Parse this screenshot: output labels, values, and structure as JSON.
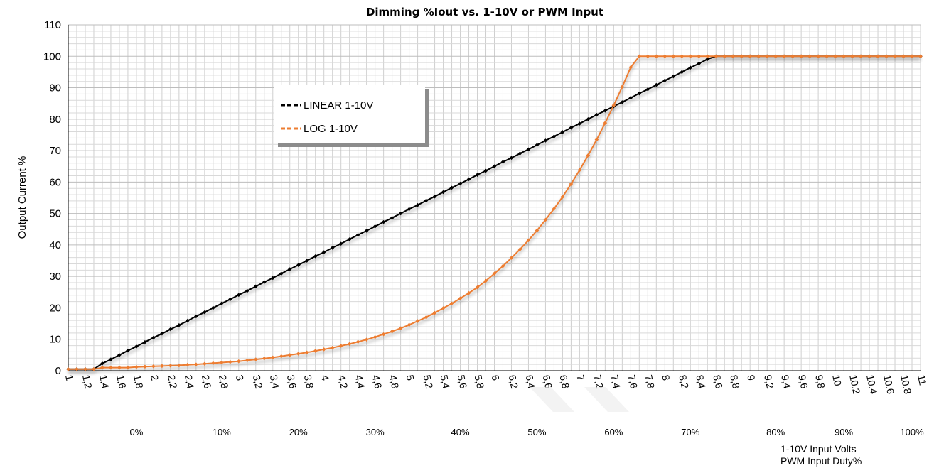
{
  "chart_data": {
    "type": "line",
    "title": "Dimming %Iout vs. 1-10V or PWM Input",
    "ylabel": "Output Current %",
    "xlabel_lines": [
      "1-10V Input Volts",
      "PWM Input Duty%"
    ],
    "ylim": [
      0,
      110
    ],
    "yticks": [
      0,
      10,
      20,
      30,
      40,
      50,
      60,
      70,
      80,
      90,
      100,
      110
    ],
    "xlim": [
      1,
      11
    ],
    "x_tick_labels": [
      "1",
      "1,2",
      "1,4",
      "1,6",
      "1,8",
      "2",
      "2,2",
      "2,4",
      "2,6",
      "2,8",
      "3",
      "3,2",
      "3,4",
      "3,6",
      "3,8",
      "4",
      "4,2",
      "4,4",
      "4,6",
      "4,8",
      "5",
      "5,2",
      "5,4",
      "5,6",
      "5,8",
      "6",
      "6,2",
      "6,4",
      "6,6",
      "6,8",
      "7",
      "7,2",
      "7,4",
      "7,6",
      "7,8",
      "8",
      "8,2",
      "8,4",
      "8,6",
      "8,8",
      "9",
      "9,2",
      "9,4",
      "9,6",
      "9,8",
      "10",
      "10,2",
      "10,4",
      "10,6",
      "10,8",
      "11"
    ],
    "pwm_labels": [
      {
        "text": "0%",
        "at": 1.8
      },
      {
        "text": "10%",
        "at": 2.8
      },
      {
        "text": "20%",
        "at": 3.7
      },
      {
        "text": "30%",
        "at": 4.6
      },
      {
        "text": "40%",
        "at": 5.6
      },
      {
        "text": "50%",
        "at": 6.5
      },
      {
        "text": "60%",
        "at": 7.4
      },
      {
        "text": "70%",
        "at": 8.3
      },
      {
        "text": "80%",
        "at": 9.3
      },
      {
        "text": "90%",
        "at": 10.1
      },
      {
        "text": "100%",
        "at": 10.9
      }
    ],
    "grid": true,
    "legend_position": "top-left",
    "series": [
      {
        "name": "LINEAR 1-10V",
        "color": "#000000",
        "x": [
          1,
          1.1,
          1.2,
          1.3,
          1.4,
          1.5,
          1.6,
          1.7,
          1.8,
          1.9,
          2,
          2.1,
          2.2,
          2.3,
          2.4,
          2.5,
          2.6,
          2.7,
          2.8,
          2.9,
          3,
          3.1,
          3.2,
          3.3,
          3.4,
          3.5,
          3.6,
          3.7,
          3.8,
          3.9,
          4,
          4.1,
          4.2,
          4.3,
          4.4,
          4.5,
          4.6,
          4.7,
          4.8,
          4.9,
          5,
          5.1,
          5.2,
          5.3,
          5.4,
          5.5,
          5.6,
          5.7,
          5.8,
          5.9,
          6,
          6.1,
          6.2,
          6.3,
          6.4,
          6.5,
          6.6,
          6.7,
          6.8,
          6.9,
          7,
          7.1,
          7.2,
          7.3,
          7.4,
          7.5,
          7.6,
          7.7,
          7.8,
          7.9,
          8,
          8.1,
          8.2,
          8.3,
          8.4,
          8.5,
          8.6,
          8.7,
          8.8,
          8.9,
          9,
          9.1,
          9.2,
          9.3,
          9.4,
          9.5,
          9.6,
          9.7,
          9.8,
          9.9,
          10,
          10.1,
          10.2,
          10.3,
          10.4,
          10.5,
          10.6,
          10.7,
          10.8,
          10.9,
          11
        ],
        "values": [
          0.5,
          0.5,
          0.5,
          0.5,
          2.3,
          3.6,
          5,
          6.4,
          7.7,
          9.1,
          10.5,
          11.8,
          13.2,
          14.5,
          15.9,
          17.3,
          18.6,
          20,
          21.4,
          22.7,
          24.1,
          25.4,
          26.8,
          28.2,
          29.5,
          30.9,
          32.3,
          33.6,
          35,
          36.4,
          37.7,
          39.1,
          40.4,
          41.8,
          43.2,
          44.5,
          45.9,
          47.3,
          48.6,
          50,
          51.4,
          52.7,
          54.1,
          55.4,
          56.8,
          58.2,
          59.5,
          60.9,
          62.3,
          63.6,
          65,
          66.4,
          67.7,
          69.1,
          70.4,
          71.8,
          73.2,
          74.5,
          75.9,
          77.3,
          78.6,
          80,
          81.4,
          82.7,
          84.1,
          85.4,
          86.8,
          88.2,
          89.5,
          90.9,
          92.3,
          93.6,
          95,
          96.4,
          97.7,
          99.1,
          100,
          100,
          100,
          100,
          100,
          100,
          100,
          100,
          100,
          100,
          100,
          100,
          100,
          100,
          100,
          100,
          100,
          100,
          100,
          100,
          100,
          100,
          100,
          100,
          100
        ]
      },
      {
        "name": "LOG 1-10V",
        "color": "#ED7D31",
        "x": [
          1,
          1.1,
          1.2,
          1.3,
          1.4,
          1.5,
          1.6,
          1.7,
          1.8,
          1.9,
          2,
          2.1,
          2.2,
          2.3,
          2.4,
          2.5,
          2.6,
          2.7,
          2.8,
          2.9,
          3,
          3.1,
          3.2,
          3.3,
          3.4,
          3.5,
          3.6,
          3.7,
          3.8,
          3.9,
          4,
          4.1,
          4.2,
          4.3,
          4.4,
          4.5,
          4.6,
          4.7,
          4.8,
          4.9,
          5,
          5.1,
          5.2,
          5.3,
          5.4,
          5.5,
          5.6,
          5.7,
          5.8,
          5.9,
          6,
          6.1,
          6.2,
          6.3,
          6.4,
          6.5,
          6.6,
          6.7,
          6.8,
          6.9,
          7,
          7.1,
          7.2,
          7.3,
          7.4,
          7.5,
          7.6,
          7.7,
          7.8,
          7.9,
          8,
          8.1,
          8.2,
          8.3,
          8.4,
          8.5,
          8.6,
          8.7,
          8.8,
          8.9,
          9,
          9.1,
          9.2,
          9.3,
          9.4,
          9.5,
          9.6,
          9.7,
          9.8,
          9.9,
          10,
          10.1,
          10.2,
          10.3,
          10.4,
          10.5,
          10.6,
          10.7,
          10.8,
          10.9,
          11
        ],
        "values": [
          0.5,
          0.5,
          0.5,
          0.5,
          1,
          1,
          1,
          1,
          1.2,
          1.3,
          1.4,
          1.5,
          1.6,
          1.7,
          1.9,
          2,
          2.2,
          2.4,
          2.6,
          2.8,
          3,
          3.3,
          3.6,
          3.9,
          4.2,
          4.6,
          5,
          5.4,
          5.8,
          6.3,
          6.8,
          7.3,
          7.9,
          8.5,
          9.2,
          9.9,
          10.7,
          11.6,
          12.5,
          13.5,
          14.6,
          15.8,
          17,
          18.4,
          19.9,
          21.4,
          23,
          24.7,
          26.5,
          28.6,
          30.9,
          33.3,
          35.9,
          38.6,
          41.5,
          44.6,
          48,
          51.5,
          55.3,
          59.4,
          63.8,
          68.5,
          73.5,
          78.8,
          84.4,
          90.3,
          96.5,
          100,
          100,
          100,
          100,
          100,
          100,
          100,
          100,
          100,
          100,
          100,
          100,
          100,
          100,
          100,
          100,
          100,
          100,
          100,
          100,
          100,
          100,
          100,
          100,
          100,
          100,
          100,
          100,
          100,
          100,
          100,
          100,
          100,
          100
        ]
      }
    ]
  }
}
